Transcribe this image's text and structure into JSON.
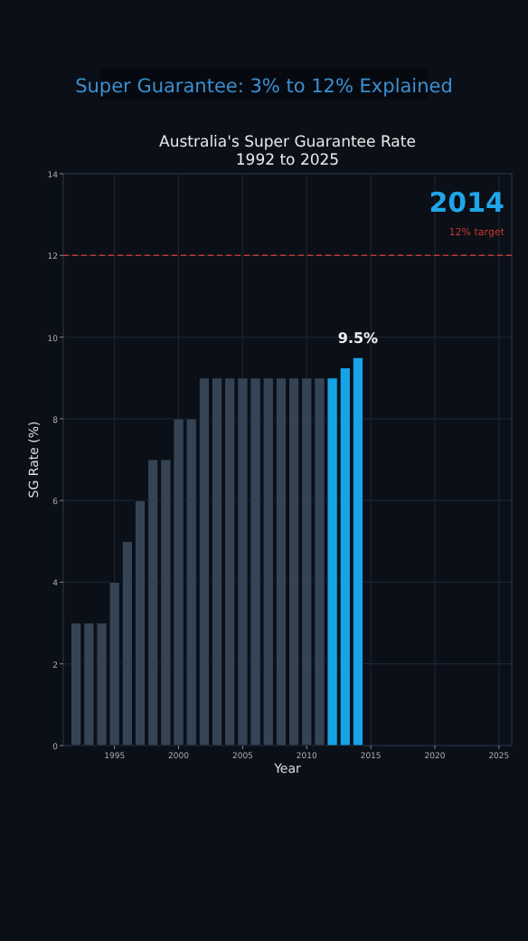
{
  "chart_data": {
    "type": "bar",
    "title": "Australia's Super Guarantee Rate\n1992 to 2025",
    "xlabel": "Year",
    "ylabel": "SG Rate (%)",
    "x": [
      1992,
      1993,
      1994,
      1995,
      1996,
      1997,
      1998,
      1999,
      2000,
      2001,
      2002,
      2003,
      2004,
      2005,
      2006,
      2007,
      2008,
      2009,
      2010,
      2011,
      2012,
      2013,
      2014
    ],
    "values": [
      3,
      3,
      3,
      4,
      5,
      6,
      7,
      7,
      8,
      8,
      9,
      9,
      9,
      9,
      9,
      9,
      9,
      9,
      9,
      9,
      9,
      9.25,
      9.5
    ],
    "colors": [
      "#344454",
      "#344454",
      "#344454",
      "#344454",
      "#344454",
      "#344454",
      "#344454",
      "#344454",
      "#344454",
      "#344454",
      "#344454",
      "#344454",
      "#344454",
      "#344454",
      "#344454",
      "#344454",
      "#344454",
      "#344454",
      "#344454",
      "#344454",
      "#16a4e6",
      "#16a4e6",
      "#16a4e6"
    ],
    "xlim": [
      1991,
      2026
    ],
    "xticks": [
      1995,
      2000,
      2005,
      2010,
      2015,
      2020,
      2025
    ],
    "ylim": [
      0,
      14
    ],
    "yticks": [
      0,
      2,
      4,
      6,
      8,
      10,
      12,
      14
    ],
    "grid": true,
    "ref_lines": [
      {
        "axis": "y",
        "value": 12,
        "label": "12% target",
        "color": "#c0392b",
        "line_style": "dashed"
      }
    ],
    "annotations": [
      "Super Guarantee: 3% to 12% Explained",
      "2014",
      {
        "text": "9.5%",
        "x": 2014,
        "y": 9.5
      }
    ]
  }
}
